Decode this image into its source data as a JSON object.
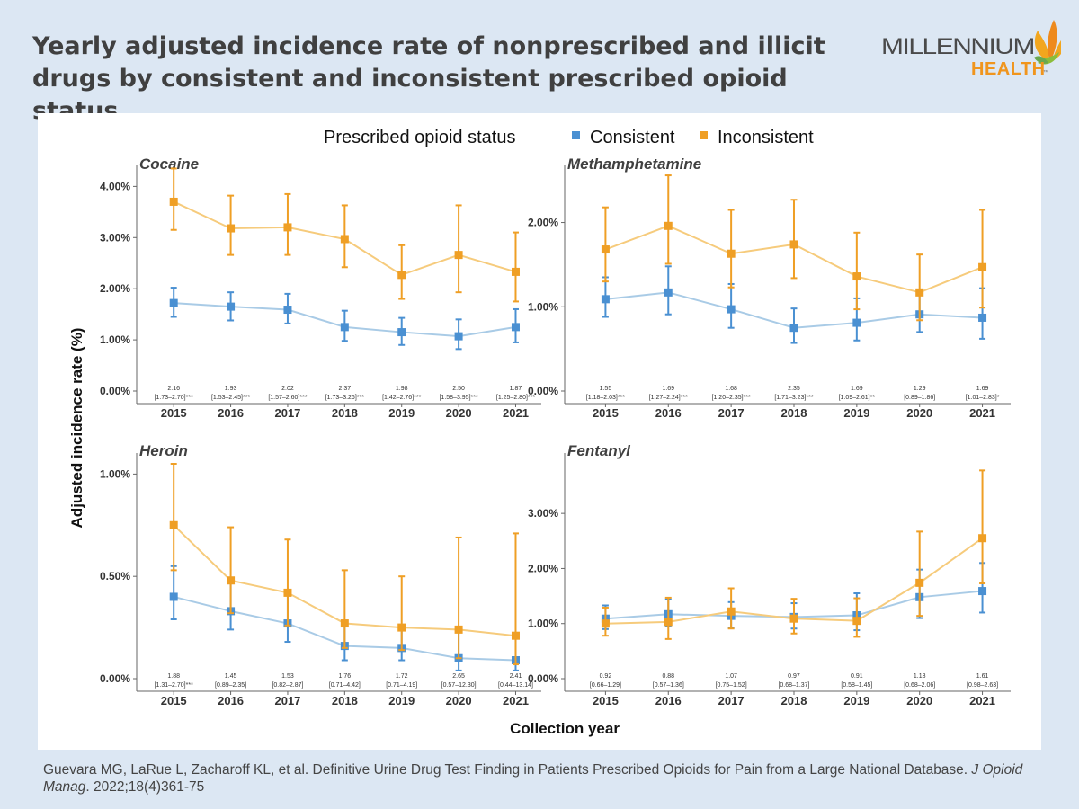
{
  "title": "Yearly adjusted incidence rate of nonprescribed and illicit drugs by consistent and inconsistent prescribed opioid status",
  "logo": {
    "line1": "MILLENNIUM",
    "line2": "HEALTH",
    "tm": "™"
  },
  "citation": {
    "before": "Guevara MG, LaRue L, Zacharoff KL, et al. Definitive Urine Drug Test Finding in Patients Prescribed Opioids for Pain from a Large National Database. ",
    "journal": "J Opioid Manag",
    "after": ". 2022;18(4)361-75"
  },
  "colors": {
    "consistent": "#4a90d2",
    "consistent_line": "#a9cbe6",
    "inconsistent": "#ef9f25",
    "inconsistent_line": "#f6cb7c",
    "axis": "#666666"
  },
  "chart_data": {
    "type": "line",
    "legend": {
      "title": "Prescribed opioid status",
      "position": "top",
      "entries": [
        "Consistent",
        "Inconsistent"
      ]
    },
    "ylabel": "Adjusted incidence rate (%)",
    "xlabel": "Collection year",
    "panels": [
      {
        "name": "Cocaine",
        "x": [
          "2015",
          "2016",
          "2017",
          "2018",
          "2019",
          "2020",
          "2021"
        ],
        "ylim": [
          0,
          4.2
        ],
        "yticks": [
          0,
          1,
          2,
          3,
          4
        ],
        "ytick_labels": [
          "0.00%",
          "1.00%",
          "2.00%",
          "3.00%",
          "4.00%"
        ],
        "series": [
          {
            "name": "Consistent",
            "values": [
              1.72,
              1.65,
              1.59,
              1.25,
              1.15,
              1.07,
              1.25
            ],
            "lower": [
              1.45,
              1.38,
              1.32,
              0.98,
              0.9,
              0.82,
              0.95
            ],
            "upper": [
              2.02,
              1.93,
              1.9,
              1.57,
              1.43,
              1.4,
              1.6
            ]
          },
          {
            "name": "Inconsistent",
            "values": [
              3.7,
              3.18,
              3.2,
              2.97,
              2.27,
              2.66,
              2.33
            ],
            "lower": [
              3.15,
              2.66,
              2.66,
              2.42,
              1.8,
              1.93,
              1.75
            ],
            "upper": [
              4.35,
              3.82,
              3.85,
              3.63,
              2.85,
              3.63,
              3.1
            ]
          }
        ],
        "ratios": [
          "2.16",
          "1.93",
          "2.02",
          "2.37",
          "1.98",
          "2.50",
          "1.87"
        ],
        "ci": [
          "[1.73–2.70]***",
          "[1.53–2.45]***",
          "[1.57–2.60]***",
          "[1.73–3.26]***",
          "[1.42–2.76]***",
          "[1.58–3.95]***",
          "[1.25–2.80]***"
        ]
      },
      {
        "name": "Methamphetamine",
        "x": [
          "2015",
          "2016",
          "2017",
          "2018",
          "2019",
          "2020",
          "2021"
        ],
        "ylim": [
          0,
          2.55
        ],
        "yticks": [
          0,
          1,
          2
        ],
        "ytick_labels": [
          "0.00%",
          "1.00%",
          "2.00%"
        ],
        "series": [
          {
            "name": "Consistent",
            "values": [
              1.09,
              1.17,
              0.97,
              0.75,
              0.81,
              0.91,
              0.87
            ],
            "lower": [
              0.88,
              0.91,
              0.75,
              0.57,
              0.6,
              0.7,
              0.62
            ],
            "upper": [
              1.35,
              1.48,
              1.27,
              0.98,
              1.1,
              1.17,
              1.22
            ]
          },
          {
            "name": "Inconsistent",
            "values": [
              1.68,
              1.96,
              1.63,
              1.74,
              1.36,
              1.17,
              1.47
            ],
            "lower": [
              1.3,
              1.51,
              1.23,
              1.34,
              0.97,
              0.84,
              0.99
            ],
            "upper": [
              2.18,
              2.56,
              2.15,
              2.27,
              1.88,
              1.62,
              2.15
            ]
          }
        ],
        "ratios": [
          "1.55",
          "1.69",
          "1.68",
          "2.35",
          "1.69",
          "1.29",
          "1.69"
        ],
        "ci": [
          "[1.18–2.03]***",
          "[1.27–2.24]***",
          "[1.20–2.35]***",
          "[1.71–3.23]***",
          "[1.09–2.61]**",
          "[0.89–1.86]",
          "[1.01–2.83]*"
        ]
      },
      {
        "name": "Heroin",
        "x": [
          "2015",
          "2016",
          "2017",
          "2018",
          "2019",
          "2020",
          "2021"
        ],
        "ylim": [
          0,
          1.05
        ],
        "yticks": [
          0,
          0.5,
          1
        ],
        "ytick_labels": [
          "0.00%",
          "0.50%",
          "1.00%"
        ],
        "series": [
          {
            "name": "Consistent",
            "values": [
              0.4,
              0.33,
              0.27,
              0.16,
              0.15,
              0.1,
              0.09
            ],
            "lower": [
              0.29,
              0.24,
              0.18,
              0.09,
              0.09,
              0.04,
              0.04
            ],
            "upper": [
              0.55,
              0.47,
              0.42,
              0.27,
              0.24,
              0.23,
              0.22
            ]
          },
          {
            "name": "Inconsistent",
            "values": [
              0.75,
              0.48,
              0.42,
              0.27,
              0.25,
              0.24,
              0.21
            ],
            "lower": [
              0.53,
              0.32,
              0.26,
              0.15,
              0.14,
              0.1,
              0.07
            ],
            "upper": [
              1.05,
              0.74,
              0.68,
              0.53,
              0.5,
              0.69,
              0.71
            ]
          }
        ],
        "ratios": [
          "1.88",
          "1.45",
          "1.53",
          "1.76",
          "1.72",
          "2.65",
          "2.41"
        ],
        "ci": [
          "[1.31–2.70]***",
          "[0.89–2.35]",
          "[0.82–2.87]",
          "[0.71–4.42]",
          "[0.71–4.19]",
          "[0.57–12.30]",
          "[0.44–13.14]"
        ]
      },
      {
        "name": "Fentanyl",
        "x": [
          "2015",
          "2016",
          "2017",
          "2018",
          "2019",
          "2020",
          "2021"
        ],
        "ylim": [
          0,
          3.9
        ],
        "yticks": [
          0,
          1,
          2,
          3
        ],
        "ytick_labels": [
          "0.00%",
          "1.00%",
          "2.00%",
          "3.00%"
        ],
        "series": [
          {
            "name": "Consistent",
            "values": [
              1.09,
              1.17,
              1.14,
              1.12,
              1.15,
              1.48,
              1.59
            ],
            "lower": [
              0.9,
              0.95,
              0.92,
              0.91,
              0.88,
              1.1,
              1.2
            ],
            "upper": [
              1.33,
              1.44,
              1.39,
              1.37,
              1.55,
              1.98,
              2.1
            ]
          },
          {
            "name": "Inconsistent",
            "values": [
              1.0,
              1.03,
              1.22,
              1.09,
              1.05,
              1.74,
              2.55
            ],
            "lower": [
              0.78,
              0.72,
              0.91,
              0.82,
              0.76,
              1.14,
              1.73
            ],
            "upper": [
              1.29,
              1.47,
              1.64,
              1.45,
              1.46,
              2.67,
              3.78
            ]
          }
        ],
        "ratios": [
          "0.92",
          "0.88",
          "1.07",
          "0.97",
          "0.91",
          "1.18",
          "1.61"
        ],
        "ci": [
          "[0.66–1.29]",
          "[0.57–1.36]",
          "[0.75–1.52]",
          "[0.68–1.37]",
          "[0.58–1.45]",
          "[0.68–2.06]",
          "[0.98–2.63]"
        ]
      }
    ]
  }
}
